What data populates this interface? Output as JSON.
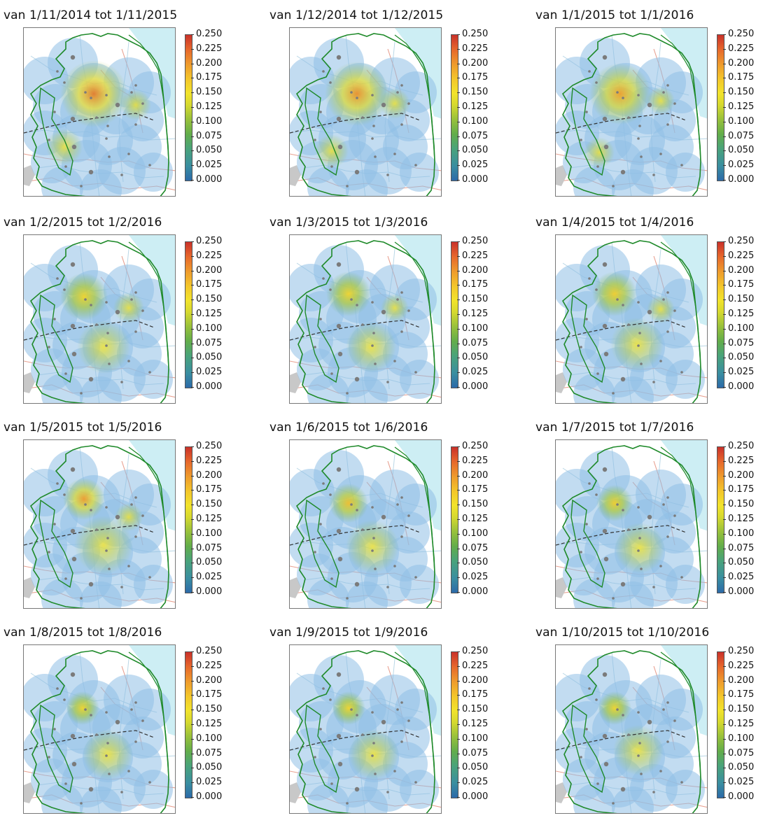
{
  "figure": {
    "colorbar": {
      "ticks": [
        "0.250",
        "0.225",
        "0.200",
        "0.175",
        "0.150",
        "0.125",
        "0.100",
        "0.075",
        "0.050",
        "0.025",
        "0.000"
      ],
      "min": 0.0,
      "max": 0.25,
      "colors": [
        "#2c6aa8",
        "#4aa37a",
        "#98c13b",
        "#f2e32c",
        "#ee9a2d",
        "#c9312a"
      ]
    },
    "panels": [
      {
        "title": "van 1/11/2014 tot 1/11/2015",
        "peak": 0.215
      },
      {
        "title": "van 1/12/2014 tot 1/12/2015",
        "peak": 0.205
      },
      {
        "title": "van 1/1/2015 tot 1/1/2016",
        "peak": 0.195
      },
      {
        "title": "van 1/2/2015 tot 1/2/2016",
        "peak": 0.16
      },
      {
        "title": "van 1/3/2015 tot 1/3/2016",
        "peak": 0.16
      },
      {
        "title": "van 1/4/2015 tot 1/4/2016",
        "peak": 0.165
      },
      {
        "title": "van 1/5/2015 tot 1/5/2016",
        "peak": 0.2
      },
      {
        "title": "van 1/6/2015 tot 1/6/2016",
        "peak": 0.175
      },
      {
        "title": "van 1/7/2015 tot 1/7/2016",
        "peak": 0.165
      },
      {
        "title": "van 1/8/2015 tot 1/8/2016",
        "peak": 0.16
      },
      {
        "title": "van 1/9/2015 tot 1/9/2016",
        "peak": 0.16
      },
      {
        "title": "van 1/10/2015 tot 1/10/2016",
        "peak": 0.16
      }
    ]
  }
}
